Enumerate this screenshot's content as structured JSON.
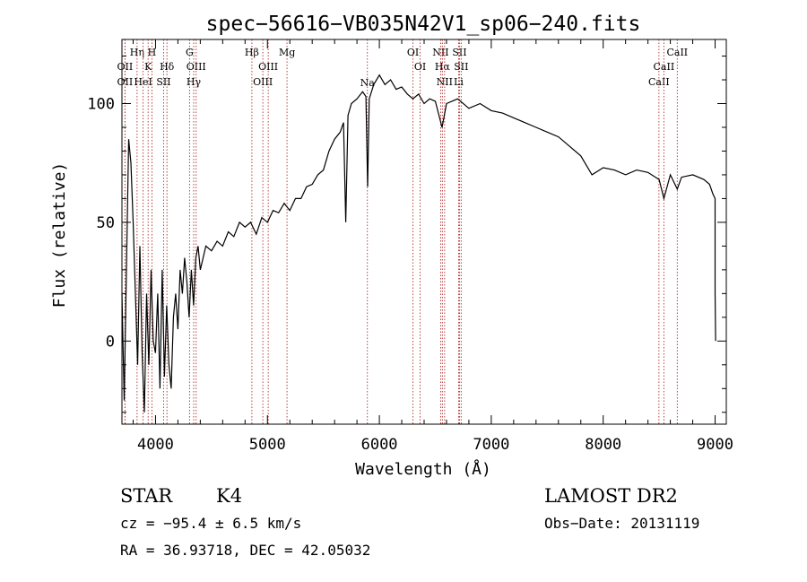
{
  "chart_data": {
    "type": "line",
    "title": "spec−56616−VB035N42V1_sp06−240.fits",
    "xlabel": "Wavelength (Å)",
    "ylabel": "Flux (relative)",
    "xlim": [
      3700,
      9100
    ],
    "ylim": [
      -35,
      127
    ],
    "x_ticks": [
      4000,
      5000,
      6000,
      7000,
      8000,
      9000
    ],
    "y_ticks": [
      0,
      50,
      100
    ],
    "x_tick_labels": [
      "4000",
      "5000",
      "6000",
      "7000",
      "8000",
      "9000"
    ],
    "y_tick_labels": [
      "0",
      "50",
      "100"
    ],
    "grid": false,
    "series": [
      {
        "points": [
          [
            3700,
            20
          ],
          [
            3720,
            -25
          ],
          [
            3740,
            30
          ],
          [
            3760,
            85
          ],
          [
            3780,
            75
          ],
          [
            3800,
            50
          ],
          [
            3820,
            20
          ],
          [
            3840,
            -10
          ],
          [
            3860,
            40
          ],
          [
            3880,
            -5
          ],
          [
            3900,
            -30
          ],
          [
            3920,
            20
          ],
          [
            3940,
            -10
          ],
          [
            3960,
            30
          ],
          [
            3980,
            0
          ],
          [
            4000,
            -5
          ],
          [
            4020,
            20
          ],
          [
            4040,
            -20
          ],
          [
            4060,
            30
          ],
          [
            4080,
            -15
          ],
          [
            4100,
            15
          ],
          [
            4120,
            -10
          ],
          [
            4140,
            -20
          ],
          [
            4160,
            10
          ],
          [
            4180,
            20
          ],
          [
            4200,
            5
          ],
          [
            4220,
            30
          ],
          [
            4240,
            20
          ],
          [
            4260,
            35
          ],
          [
            4280,
            25
          ],
          [
            4300,
            10
          ],
          [
            4320,
            30
          ],
          [
            4340,
            15
          ],
          [
            4360,
            35
          ],
          [
            4380,
            40
          ],
          [
            4400,
            30
          ],
          [
            4450,
            40
          ],
          [
            4500,
            38
          ],
          [
            4550,
            42
          ],
          [
            4600,
            40
          ],
          [
            4650,
            46
          ],
          [
            4700,
            44
          ],
          [
            4750,
            50
          ],
          [
            4800,
            48
          ],
          [
            4850,
            50
          ],
          [
            4900,
            45
          ],
          [
            4950,
            52
          ],
          [
            5000,
            50
          ],
          [
            5050,
            55
          ],
          [
            5100,
            54
          ],
          [
            5150,
            58
          ],
          [
            5200,
            55
          ],
          [
            5250,
            60
          ],
          [
            5300,
            60
          ],
          [
            5350,
            65
          ],
          [
            5400,
            66
          ],
          [
            5450,
            70
          ],
          [
            5500,
            72
          ],
          [
            5550,
            80
          ],
          [
            5600,
            85
          ],
          [
            5650,
            88
          ],
          [
            5680,
            92
          ],
          [
            5700,
            50
          ],
          [
            5720,
            95
          ],
          [
            5750,
            100
          ],
          [
            5800,
            102
          ],
          [
            5850,
            105
          ],
          [
            5880,
            103
          ],
          [
            5895,
            65
          ],
          [
            5910,
            102
          ],
          [
            5950,
            108
          ],
          [
            6000,
            112
          ],
          [
            6050,
            108
          ],
          [
            6100,
            110
          ],
          [
            6150,
            106
          ],
          [
            6200,
            107
          ],
          [
            6250,
            104
          ],
          [
            6300,
            102
          ],
          [
            6350,
            104
          ],
          [
            6400,
            100
          ],
          [
            6450,
            102
          ],
          [
            6500,
            101
          ],
          [
            6560,
            90
          ],
          [
            6600,
            100
          ],
          [
            6700,
            102
          ],
          [
            6800,
            98
          ],
          [
            6900,
            100
          ],
          [
            7000,
            97
          ],
          [
            7100,
            96
          ],
          [
            7200,
            94
          ],
          [
            7300,
            92
          ],
          [
            7400,
            90
          ],
          [
            7500,
            88
          ],
          [
            7600,
            86
          ],
          [
            7700,
            82
          ],
          [
            7800,
            78
          ],
          [
            7900,
            70
          ],
          [
            8000,
            73
          ],
          [
            8100,
            72
          ],
          [
            8200,
            70
          ],
          [
            8300,
            72
          ],
          [
            8400,
            71
          ],
          [
            8500,
            68
          ],
          [
            8542,
            60
          ],
          [
            8600,
            70
          ],
          [
            8662,
            64
          ],
          [
            8700,
            69
          ],
          [
            8800,
            70
          ],
          [
            8900,
            68
          ],
          [
            8950,
            66
          ],
          [
            8980,
            62
          ],
          [
            9000,
            60
          ],
          [
            9000,
            20
          ],
          [
            9005,
            0
          ]
        ]
      }
    ],
    "line_markers": [
      {
        "wavelength": 3727,
        "label": "OII",
        "row": 2
      },
      {
        "wavelength": 3727,
        "label": "OII",
        "row": 3
      },
      {
        "wavelength": 3835,
        "label": "Hη",
        "row": 1
      },
      {
        "wavelength": 3889,
        "label": "HeI",
        "row": 3
      },
      {
        "wavelength": 3934,
        "label": "K",
        "row": 2
      },
      {
        "wavelength": 3968,
        "label": "H",
        "row": 1
      },
      {
        "wavelength": 4072,
        "label": "SII",
        "row": 3
      },
      {
        "wavelength": 4102,
        "label": "Hδ",
        "row": 2
      },
      {
        "wavelength": 4304,
        "label": "G",
        "row": 1
      },
      {
        "wavelength": 4341,
        "label": "Hγ",
        "row": 3
      },
      {
        "wavelength": 4363,
        "label": "OIII",
        "row": 2
      },
      {
        "wavelength": 4861,
        "label": "Hβ",
        "row": 1
      },
      {
        "wavelength": 4959,
        "label": "OIII",
        "row": 3
      },
      {
        "wavelength": 5007,
        "label": "OIII",
        "row": 2
      },
      {
        "wavelength": 5175,
        "label": "Mg",
        "row": 1
      },
      {
        "wavelength": 5893,
        "label": "Na",
        "row": 4
      },
      {
        "wavelength": 6300,
        "label": "OI",
        "row": 1
      },
      {
        "wavelength": 6364,
        "label": "OI",
        "row": 2
      },
      {
        "wavelength": 6548,
        "label": "NII",
        "row": 1
      },
      {
        "wavelength": 6563,
        "label": "Hα",
        "row": 2
      },
      {
        "wavelength": 6583,
        "label": "NII",
        "row": 3
      },
      {
        "wavelength": 6708,
        "label": "Li",
        "row": 3
      },
      {
        "wavelength": 6716,
        "label": "SII",
        "row": 1
      },
      {
        "wavelength": 6731,
        "label": "SII",
        "row": 2
      },
      {
        "wavelength": 8498,
        "label": "CaII",
        "row": 3
      },
      {
        "wavelength": 8542,
        "label": "CaII",
        "row": 2
      },
      {
        "wavelength": 8662,
        "label": "CaII",
        "row": 1
      }
    ]
  },
  "info": {
    "object_class": "STAR",
    "subclass": "K4",
    "survey": "LAMOST DR2",
    "redshift": "cz = −95.4 ± 6.5 km/s",
    "obs_date": "Obs−Date: 20131119",
    "coords": "RA =  36.93718, DEC =  42.05032"
  }
}
